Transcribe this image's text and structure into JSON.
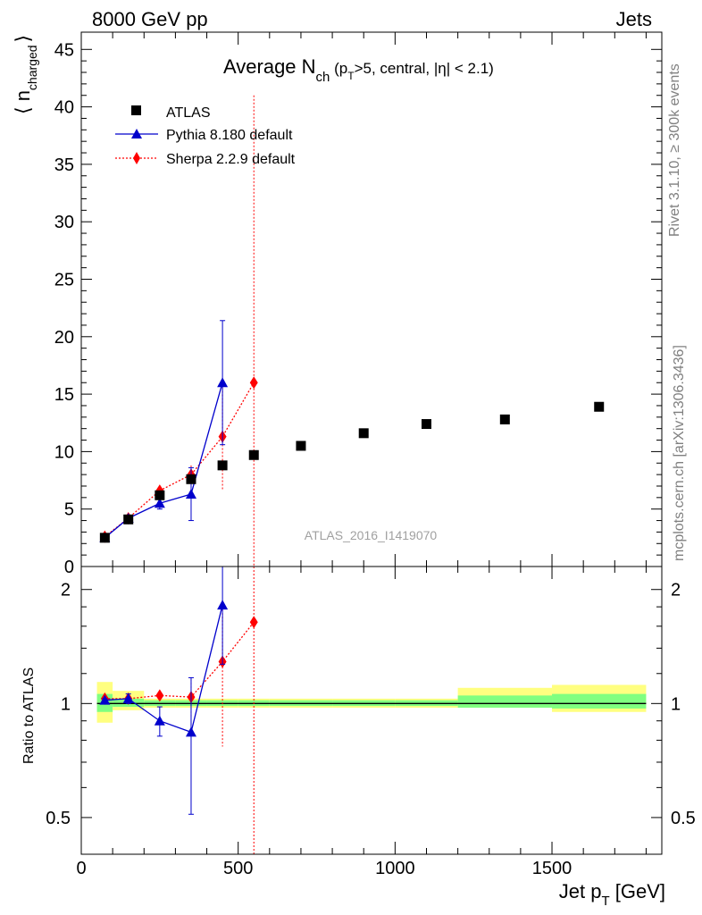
{
  "header": {
    "left": "8000 GeV pp",
    "right": "Jets"
  },
  "side_labels": {
    "rivet": "Rivet 3.1.10, ≥ 300k events",
    "mcplots": "mcplots.cern.ch [arXiv:1306.3436]"
  },
  "watermark": "ATLAS_2016_I1419070",
  "colors": {
    "atlas": "#000000",
    "pythia": "#0000cc",
    "sherpa": "#ff0000",
    "band_inner": "#80ff80",
    "band_outer": "#ffff80"
  },
  "chart_data": [
    {
      "type": "scatter",
      "title_main": "Average N",
      "title_sub": "ch",
      "title_rest_a": " (p",
      "title_rest_sub": "T",
      "title_rest_b": ">5, central, |η| < 2.1)",
      "ylabel_main": "⟨ n",
      "ylabel_sub": "charged",
      "ylabel_close": "⟩",
      "xlim": [
        0,
        1850
      ],
      "ylim": [
        0,
        46.5
      ],
      "yticks": [
        0,
        5,
        10,
        15,
        20,
        25,
        30,
        35,
        40,
        45
      ],
      "legend_position": "top-left",
      "legend": [
        "ATLAS",
        "Pythia 8.180 default",
        "Sherpa 2.2.9 default"
      ],
      "series": [
        {
          "name": "ATLAS",
          "marker": "square",
          "x": [
            75,
            150,
            250,
            350,
            450,
            550,
            700,
            900,
            1100,
            1350,
            1650
          ],
          "y": [
            2.5,
            4.1,
            6.2,
            7.6,
            8.8,
            9.7,
            10.5,
            11.6,
            12.4,
            12.8,
            13.9
          ]
        },
        {
          "name": "Pythia 8.180 default",
          "marker": "triangle",
          "x": [
            75,
            150,
            250,
            350,
            450
          ],
          "y": [
            2.5,
            4.2,
            5.5,
            6.3,
            16.0
          ],
          "err": [
            0.1,
            0.2,
            0.5,
            2.3,
            5.4
          ]
        },
        {
          "name": "Sherpa 2.2.9 default",
          "marker": "diamond",
          "x": [
            75,
            150,
            250,
            350,
            450,
            550
          ],
          "y": [
            2.6,
            4.2,
            6.6,
            8.0,
            11.3,
            16.0
          ],
          "err": [
            0.1,
            0.1,
            0.2,
            0.8,
            4.6,
            25.0
          ]
        }
      ]
    },
    {
      "type": "scatter",
      "ylabel": "Ratio to ATLAS",
      "xlabel_main": "Jet p",
      "xlabel_sub": "T",
      "xlabel_rest": " [GeV]",
      "xlim": [
        0,
        1850
      ],
      "ylim": [
        0.4,
        2.3
      ],
      "yscale": "log",
      "yticks": [
        0.5,
        1,
        2
      ],
      "xticks": [
        0,
        500,
        1000,
        1500
      ],
      "bands": {
        "x_edges": [
          [
            50,
            100
          ],
          [
            100,
            200
          ],
          [
            200,
            300
          ],
          [
            300,
            400
          ],
          [
            400,
            500
          ],
          [
            500,
            600
          ],
          [
            600,
            800
          ],
          [
            800,
            1000
          ],
          [
            1000,
            1200
          ],
          [
            1200,
            1500
          ],
          [
            1500,
            1800
          ]
        ],
        "inner": [
          [
            0.95,
            1.06
          ],
          [
            0.98,
            1.03
          ],
          [
            0.985,
            1.02
          ],
          [
            0.985,
            1.02
          ],
          [
            0.985,
            1.02
          ],
          [
            0.985,
            1.02
          ],
          [
            0.985,
            1.02
          ],
          [
            0.985,
            1.02
          ],
          [
            0.985,
            1.02
          ],
          [
            0.975,
            1.05
          ],
          [
            0.97,
            1.06
          ]
        ],
        "outer": [
          [
            0.89,
            1.14
          ],
          [
            0.96,
            1.08
          ],
          [
            0.975,
            1.03
          ],
          [
            0.975,
            1.03
          ],
          [
            0.975,
            1.03
          ],
          [
            0.975,
            1.03
          ],
          [
            0.975,
            1.03
          ],
          [
            0.975,
            1.03
          ],
          [
            0.975,
            1.03
          ],
          [
            0.99,
            1.1
          ],
          [
            0.95,
            1.12
          ]
        ]
      },
      "series": [
        {
          "name": "Pythia 8.180 default",
          "x": [
            75,
            150,
            250,
            350,
            450
          ],
          "y": [
            1.02,
            1.03,
            0.9,
            0.84,
            1.82
          ],
          "err": [
            0.01,
            0.03,
            0.08,
            0.33,
            0.55
          ]
        },
        {
          "name": "Sherpa 2.2.9 default",
          "x": [
            75,
            150,
            250,
            350,
            450,
            550
          ],
          "y": [
            1.03,
            1.03,
            1.05,
            1.04,
            1.29,
            1.64
          ],
          "err": [
            0.01,
            0.02,
            0.02,
            0.12,
            0.52,
            2.5
          ]
        }
      ]
    }
  ]
}
